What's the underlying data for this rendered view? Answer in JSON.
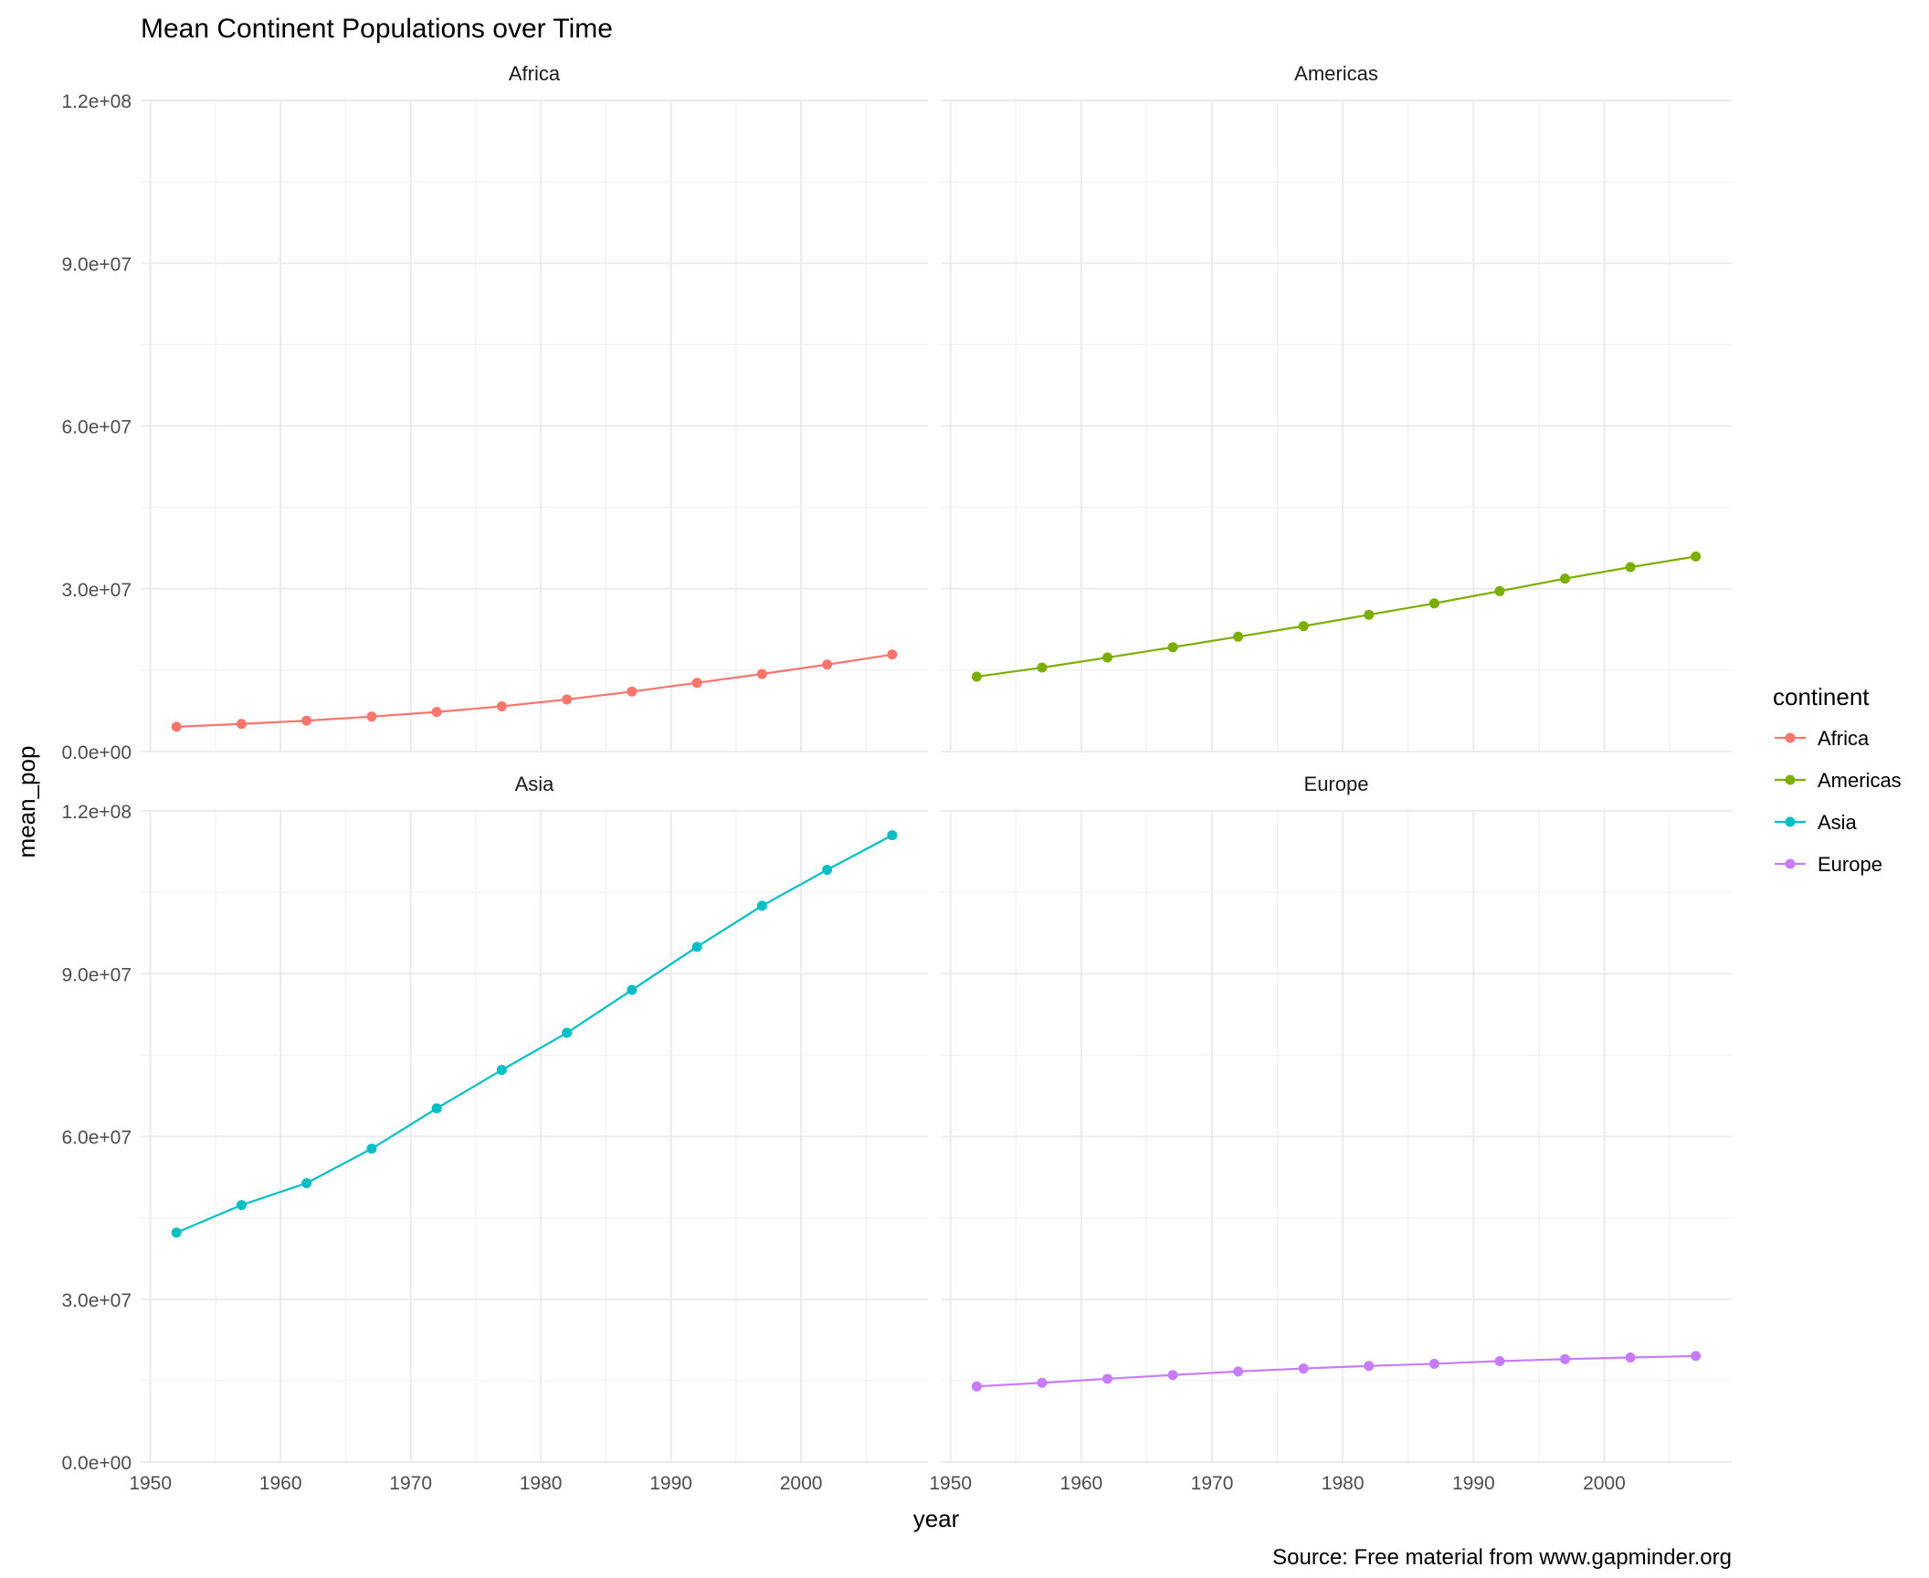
{
  "chart_data": {
    "type": "line",
    "title": "Mean Continent Populations over Time",
    "xlabel": "year",
    "ylabel": "mean_pop",
    "caption": "Source: Free material from www.gapminder.org",
    "legend": {
      "title": "continent",
      "placement": "right"
    },
    "xlim": [
      1949.25,
      2009.75
    ],
    "ylim": [
      0,
      120000000
    ],
    "x_ticks": [
      1950,
      1960,
      1970,
      1980,
      1990,
      2000
    ],
    "x_tick_labels": [
      "1950",
      "1960",
      "1970",
      "1980",
      "1990",
      "2000"
    ],
    "y_ticks": [
      0,
      30000000,
      60000000,
      90000000,
      120000000
    ],
    "y_tick_labels": [
      "0.0e+00",
      "3.0e+07",
      "6.0e+07",
      "9.0e+07",
      "1.2e+08"
    ],
    "grid": true,
    "x": [
      1952,
      1957,
      1962,
      1967,
      1972,
      1977,
      1982,
      1987,
      1992,
      1997,
      2002,
      2007
    ],
    "series": [
      {
        "name": "Africa",
        "color": "#F8766D",
        "values": [
          4570010,
          5093033,
          5702247,
          6447875,
          7305376,
          8328097,
          9602857,
          11054502,
          12674645,
          14304480,
          16033152,
          17875763
        ]
      },
      {
        "name": "Americas",
        "color": "#7CAE00",
        "values": [
          13806098,
          15478157,
          17330810,
          19229865,
          21175368,
          23122708,
          25211637,
          27310159,
          29570964,
          31876016,
          33990910,
          35954847
        ]
      },
      {
        "name": "Asia",
        "color": "#00BFC4",
        "values": [
          42283556,
          47356988,
          51404763,
          57747361,
          65180977,
          72257987,
          79095018,
          87006690,
          94948248,
          102523803,
          109145521,
          115513752
        ]
      },
      {
        "name": "Europe",
        "color": "#C77CFF",
        "values": [
          13937362,
          14596345,
          15345172,
          16039299,
          16687835,
          17238818,
          17708897,
          18103139,
          18604760,
          18964805,
          19274129,
          19536618
        ]
      }
    ]
  }
}
